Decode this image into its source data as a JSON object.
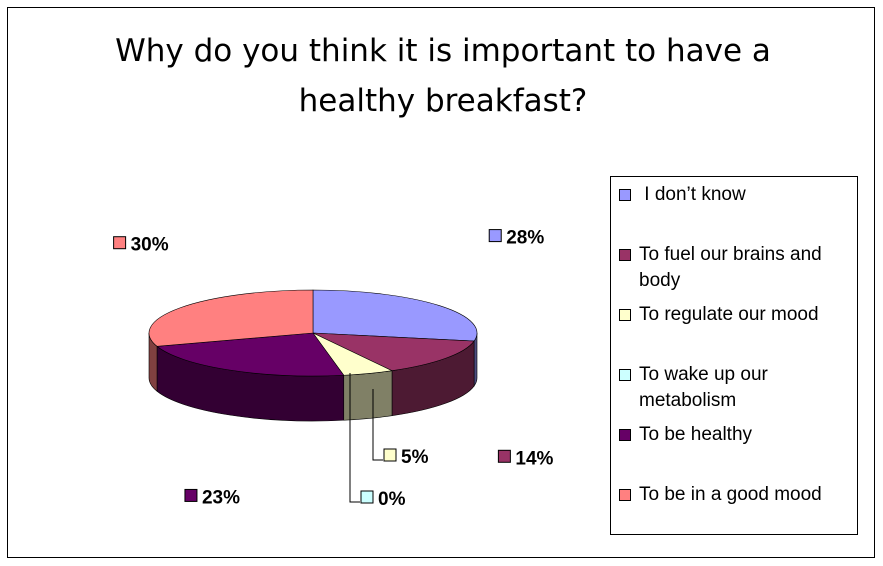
{
  "chart_data": {
    "type": "pie",
    "title": "Why do you think it is important to have a healthy breakfast?",
    "title_lines": [
      "Why do you think it is important to have a",
      "healthy breakfast?"
    ],
    "style": "3d",
    "legend_position": "right",
    "categories": [
      "I don’t know",
      "To fuel our brains and body",
      "To regulate our mood",
      "To wake up our metabolism",
      "To be healthy",
      "To be in a good mood"
    ],
    "legend_lines": [
      [
        " I don’t know"
      ],
      [
        "To fuel our brains and",
        "body"
      ],
      [
        "To regulate our mood"
      ],
      [
        "To wake up our",
        "metabolism"
      ],
      [
        "To be healthy"
      ],
      [
        "To be in a good mood"
      ]
    ],
    "values": [
      28,
      14,
      5,
      0,
      23,
      30
    ],
    "labels": [
      "28%",
      "14%",
      "5%",
      "0%",
      "23%",
      "30%"
    ],
    "colors": [
      "#9999FF",
      "#993366",
      "#FFFFCC",
      "#CCFFFF",
      "#660066",
      "#FF8080"
    ]
  }
}
